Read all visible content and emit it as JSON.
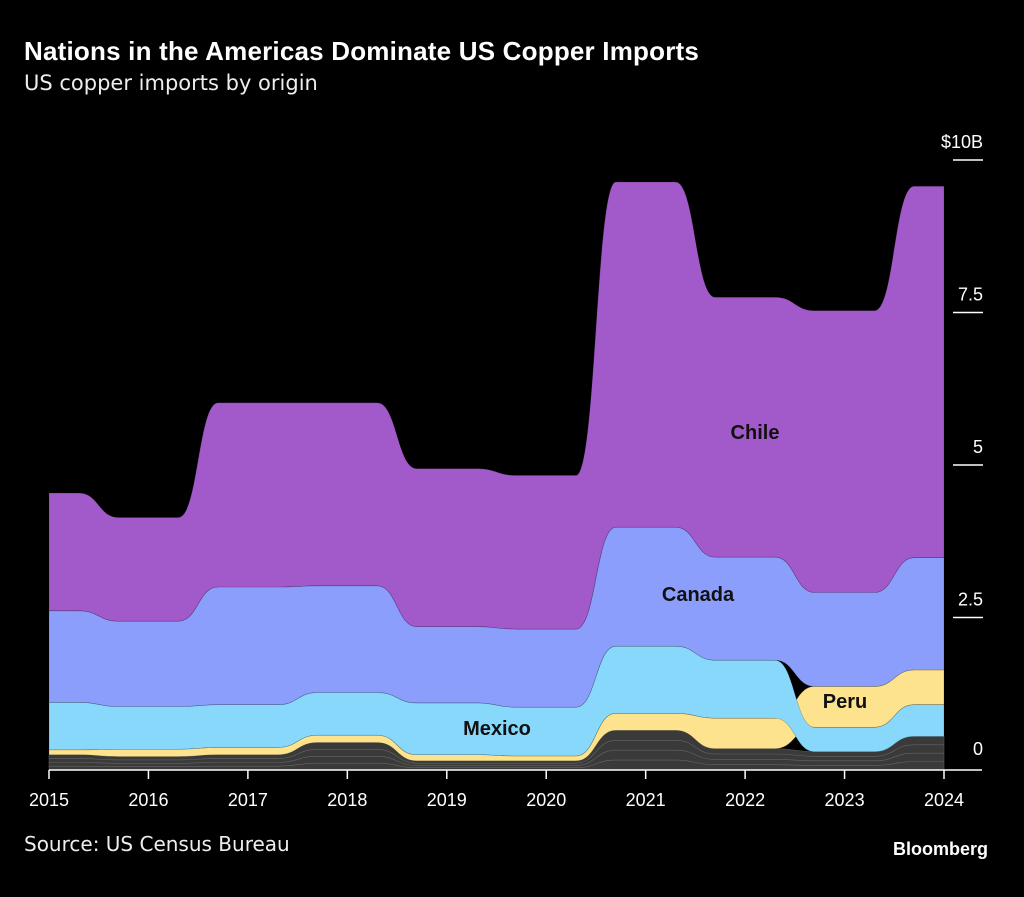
{
  "title": "Nations in the Americas Dominate US Copper Imports",
  "subtitle": "US copper imports by origin",
  "source": "Source: US Census Bureau",
  "brand": "Bloomberg",
  "chart_data": {
    "type": "area",
    "stacked": true,
    "x": [
      2015,
      2016,
      2017,
      2018,
      2019,
      2020,
      2021,
      2022,
      2023,
      2024
    ],
    "x_tick_labels": [
      "2015",
      "2016",
      "2017",
      "2018",
      "2019",
      "2020",
      "2021",
      "2022",
      "2023",
      "2024"
    ],
    "y_tick_labels": [
      "0",
      "2.5",
      "5",
      "7.5",
      "$10B"
    ],
    "y_ticks": [
      0,
      2.5,
      5,
      7.5,
      10
    ],
    "ylim": [
      0,
      10
    ],
    "yunit": "billion USD",
    "y_axis_position": "right",
    "series": [
      {
        "name": "",
        "color": "#3a3a3a",
        "values": [
          0.25,
          0.22,
          0.25,
          0.45,
          0.15,
          0.15,
          0.65,
          0.35,
          0.3,
          0.55
        ],
        "fixed_bottom": true
      },
      {
        "name": "Peru",
        "color": "#fde38d",
        "values": [
          0.08,
          0.12,
          0.12,
          0.12,
          0.1,
          0.08,
          0.28,
          0.5,
          0.67,
          0.57
        ]
      },
      {
        "name": "Mexico",
        "color": "#88d8fc",
        "values": [
          0.78,
          0.7,
          0.7,
          0.7,
          0.85,
          0.8,
          1.1,
          0.95,
          0.4,
          0.52
        ]
      },
      {
        "name": "Canada",
        "color": "#8c9efc",
        "values": [
          1.5,
          1.4,
          1.93,
          1.75,
          1.25,
          1.28,
          1.95,
          1.69,
          1.54,
          1.84
        ]
      },
      {
        "name": "Chile",
        "color": "#a259c9",
        "values": [
          1.93,
          1.7,
          3.02,
          3.0,
          2.59,
          2.52,
          5.66,
          4.26,
          4.62,
          6.09
        ]
      }
    ],
    "ordering": "per-year ascending by value, smallest at bottom",
    "grid": false
  }
}
